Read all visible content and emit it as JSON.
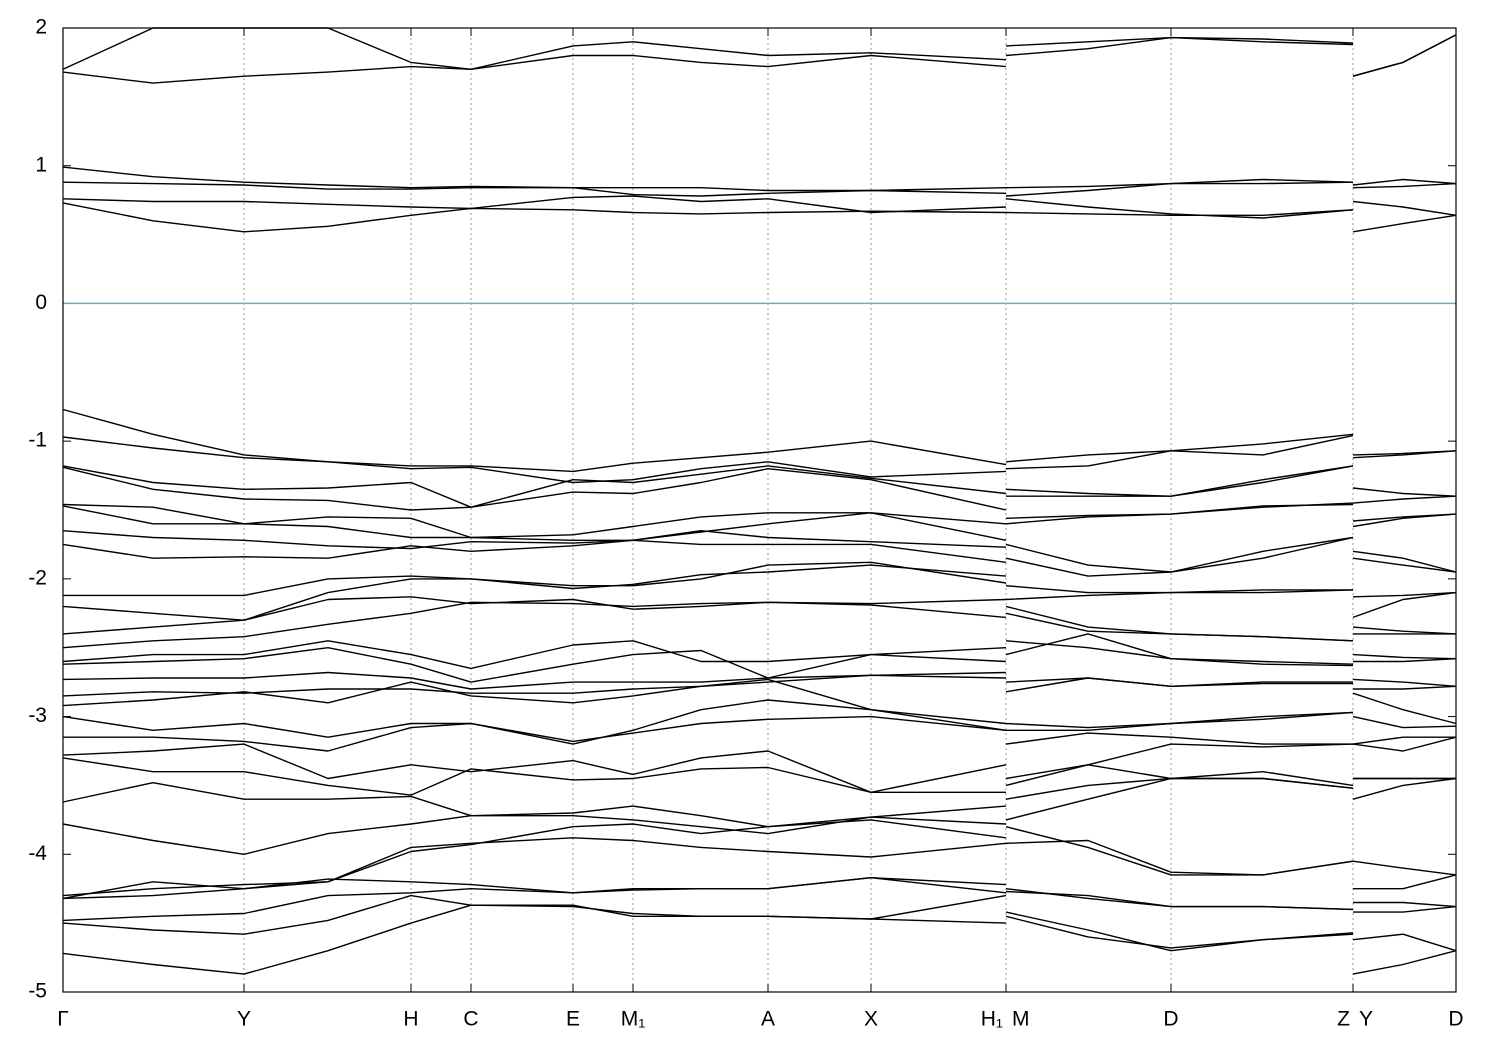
{
  "chart_data": {
    "type": "line",
    "x": [
      0,
      90,
      181,
      265,
      348,
      408,
      510,
      570,
      638,
      705,
      808,
      943,
      943,
      943,
      1025,
      1108,
      1200,
      1290,
      1290,
      1290,
      1340,
      1393
    ],
    "xlim": [
      0,
      1393
    ],
    "kpoints": [
      {
        "value": 0,
        "label": "Γ"
      },
      {
        "value": 181,
        "label": "Y"
      },
      {
        "value": 348,
        "label": "H"
      },
      {
        "value": 408,
        "label": "C"
      },
      {
        "value": 510,
        "label": "E"
      },
      {
        "value": 570,
        "label": "M₁"
      },
      {
        "value": 705,
        "label": "A"
      },
      {
        "value": 808,
        "label": "X"
      },
      {
        "value": 943,
        "label": "H₁"
      },
      {
        "value": 943,
        "label": "M"
      },
      {
        "value": 1108,
        "label": "D"
      },
      {
        "value": 1290,
        "label": "Z"
      },
      {
        "value": 1290,
        "label": "Y"
      },
      {
        "value": 1393,
        "label": "D"
      }
    ],
    "ylim": [
      -5,
      2
    ],
    "yticks": [
      -5,
      -4,
      -3,
      -2,
      -1,
      0,
      1,
      2
    ],
    "color": "#000000",
    "reference_line": {
      "value": 0,
      "color": "#5ab4c8"
    },
    "grid": true,
    "series": [
      {
        "values": [
          1.68,
          1.6,
          1.65,
          1.68,
          1.72,
          1.7,
          1.8,
          1.8,
          1.75,
          1.72,
          1.8,
          1.72,
          null,
          1.8,
          1.85,
          1.93,
          1.9,
          1.88,
          null,
          1.65,
          1.75,
          1.95
        ]
      },
      {
        "values": [
          1.7,
          2.0,
          2.0,
          2.0,
          1.75,
          1.7,
          1.87,
          1.9,
          1.85,
          1.8,
          1.82,
          1.77,
          null,
          1.87,
          1.9,
          1.93,
          1.92,
          1.89,
          null,
          1.65,
          1.75,
          1.95
        ]
      },
      {
        "values": [
          0.99,
          0.92,
          0.88,
          0.86,
          0.84,
          0.85,
          0.84,
          0.84,
          0.84,
          0.82,
          0.82,
          0.84,
          null,
          0.84,
          0.85,
          0.87,
          0.9,
          0.88,
          null,
          0.86,
          0.9,
          0.87
        ]
      },
      {
        "values": [
          0.88,
          0.87,
          0.86,
          0.83,
          0.83,
          0.84,
          0.84,
          0.79,
          0.78,
          0.8,
          0.82,
          0.8,
          null,
          0.78,
          0.82,
          0.87,
          0.87,
          0.88,
          null,
          0.84,
          0.85,
          0.87
        ]
      },
      {
        "values": [
          0.76,
          0.74,
          0.74,
          0.72,
          0.7,
          0.69,
          0.77,
          0.78,
          0.74,
          0.76,
          0.66,
          0.7,
          null,
          0.76,
          0.7,
          0.65,
          0.62,
          0.68,
          null,
          0.74,
          0.7,
          0.64
        ]
      },
      {
        "values": [
          0.73,
          0.6,
          0.52,
          0.56,
          0.64,
          0.69,
          0.68,
          0.66,
          0.65,
          0.66,
          0.67,
          0.66,
          null,
          0.66,
          0.65,
          0.64,
          0.64,
          0.68,
          null,
          0.52,
          0.58,
          0.64
        ]
      },
      {
        "values": [
          -0.77,
          -0.95,
          -1.1,
          -1.15,
          -1.18,
          -1.18,
          -1.22,
          -1.16,
          -1.12,
          -1.08,
          -1.0,
          -1.17,
          null,
          -1.15,
          -1.1,
          -1.07,
          -1.02,
          -0.95,
          null,
          -1.1,
          -1.09,
          -1.07
        ]
      },
      {
        "values": [
          -0.97,
          -1.05,
          -1.12,
          -1.15,
          -1.2,
          -1.19,
          -1.3,
          -1.28,
          -1.2,
          -1.15,
          -1.26,
          -1.22,
          null,
          -1.2,
          -1.18,
          -1.07,
          -1.1,
          -0.96,
          null,
          -1.12,
          -1.1,
          -1.07
        ]
      },
      {
        "values": [
          -1.18,
          -1.3,
          -1.35,
          -1.34,
          -1.3,
          -1.48,
          -1.28,
          -1.3,
          -1.24,
          -1.18,
          -1.27,
          -1.38,
          null,
          -1.35,
          -1.38,
          -1.4,
          -1.3,
          -1.18,
          null,
          -1.34,
          -1.38,
          -1.4
        ]
      },
      {
        "values": [
          -1.19,
          -1.35,
          -1.42,
          -1.43,
          -1.5,
          -1.48,
          -1.37,
          -1.38,
          -1.3,
          -1.2,
          -1.28,
          -1.5,
          null,
          -1.4,
          -1.4,
          -1.4,
          -1.28,
          -1.18,
          null,
          -1.45,
          -1.42,
          -1.4
        ]
      },
      {
        "values": [
          -1.46,
          -1.48,
          -1.6,
          -1.55,
          -1.56,
          -1.7,
          -1.68,
          -1.62,
          -1.55,
          -1.52,
          -1.52,
          -1.6,
          null,
          -1.6,
          -1.55,
          -1.53,
          -1.48,
          -1.45,
          null,
          -1.62,
          -1.56,
          -1.53
        ]
      },
      {
        "values": [
          -1.47,
          -1.6,
          -1.6,
          -1.62,
          -1.7,
          -1.7,
          -1.72,
          -1.72,
          -1.66,
          -1.6,
          -1.52,
          -1.72,
          null,
          -1.56,
          -1.54,
          -1.53,
          -1.47,
          -1.46,
          null,
          -1.58,
          -1.55,
          -1.53
        ]
      },
      {
        "values": [
          -1.65,
          -1.7,
          -1.72,
          -1.76,
          -1.78,
          -1.73,
          -1.74,
          -1.72,
          -1.65,
          -1.7,
          -1.73,
          -1.77,
          null,
          -1.75,
          -1.9,
          -1.95,
          -1.8,
          -1.7,
          null,
          -1.8,
          -1.85,
          -1.95
        ]
      },
      {
        "values": [
          -1.75,
          -1.85,
          -1.84,
          -1.85,
          -1.76,
          -1.8,
          -1.76,
          -1.72,
          -1.75,
          -1.75,
          -1.75,
          -1.88,
          null,
          -1.85,
          -1.98,
          -1.95,
          -1.85,
          -1.7,
          null,
          -1.85,
          -1.9,
          -1.95
        ]
      },
      {
        "values": [
          -2.12,
          -2.12,
          -2.12,
          -2.0,
          -1.98,
          -2.0,
          -2.07,
          -2.04,
          -1.97,
          -1.95,
          -1.9,
          -1.98,
          null,
          -2.05,
          -2.1,
          -2.1,
          -2.1,
          -2.08,
          null,
          -2.13,
          -2.12,
          -2.1
        ]
      },
      {
        "values": [
          -2.2,
          -2.25,
          -2.3,
          -2.1,
          -2.0,
          -2.0,
          -2.05,
          -2.05,
          -2.0,
          -1.9,
          -1.88,
          -2.03,
          null,
          -2.15,
          -2.12,
          -2.1,
          -2.08,
          -2.08,
          null,
          -2.28,
          -2.15,
          -2.1
        ]
      },
      {
        "values": [
          -2.4,
          -2.35,
          -2.3,
          -2.15,
          -2.13,
          -2.18,
          -2.15,
          -2.22,
          -2.2,
          -2.17,
          -2.18,
          -2.15,
          null,
          -2.2,
          -2.35,
          -2.4,
          -2.42,
          -2.45,
          null,
          -2.35,
          -2.38,
          -2.4
        ]
      },
      {
        "values": [
          -2.5,
          -2.45,
          -2.42,
          -2.33,
          -2.25,
          -2.17,
          -2.18,
          -2.2,
          -2.18,
          -2.17,
          -2.19,
          -2.28,
          null,
          -2.25,
          -2.38,
          -2.4,
          -2.42,
          -2.45,
          null,
          -2.4,
          -2.4,
          -2.4
        ]
      },
      {
        "values": [
          -2.6,
          -2.55,
          -2.55,
          -2.45,
          -2.55,
          -2.65,
          -2.48,
          -2.45,
          -2.6,
          -2.6,
          -2.55,
          -2.5,
          null,
          -2.55,
          -2.4,
          -2.58,
          -2.6,
          -2.62,
          null,
          -2.55,
          -2.57,
          -2.58
        ]
      },
      {
        "values": [
          -2.62,
          -2.6,
          -2.58,
          -2.5,
          -2.62,
          -2.75,
          -2.62,
          -2.55,
          -2.52,
          -2.72,
          -2.55,
          -2.6,
          null,
          -2.45,
          -2.5,
          -2.58,
          -2.62,
          -2.63,
          null,
          -2.6,
          -2.6,
          -2.58
        ]
      },
      {
        "values": [
          -2.73,
          -2.72,
          -2.72,
          -2.68,
          -2.72,
          -2.8,
          -2.75,
          -2.75,
          -2.75,
          -2.72,
          -2.7,
          -2.68,
          null,
          -2.75,
          -2.72,
          -2.78,
          -2.75,
          -2.75,
          null,
          -2.73,
          -2.75,
          -2.78
        ]
      },
      {
        "values": [
          -2.85,
          -2.82,
          -2.83,
          -2.8,
          -2.8,
          -2.83,
          -2.83,
          -2.8,
          -2.78,
          -2.75,
          -2.7,
          -2.72,
          null,
          -2.82,
          -2.72,
          -2.78,
          -2.76,
          -2.76,
          null,
          -2.8,
          -2.8,
          -2.78
        ]
      },
      {
        "values": [
          -2.92,
          -2.88,
          -2.82,
          -2.9,
          -2.75,
          -2.85,
          -2.9,
          -2.85,
          -2.78,
          -2.73,
          -2.95,
          -3.05,
          null,
          -3.05,
          -3.08,
          -3.05,
          -3.0,
          -2.97,
          null,
          -2.83,
          -2.95,
          -3.05
        ]
      },
      {
        "values": [
          -3.0,
          -3.1,
          -3.05,
          -3.15,
          -3.05,
          -3.05,
          -3.2,
          -3.1,
          -2.95,
          -2.88,
          -2.95,
          -3.1,
          null,
          -3.1,
          -3.1,
          -3.05,
          -3.02,
          -2.97,
          null,
          -3.0,
          -3.08,
          -3.07
        ]
      },
      {
        "values": [
          -3.15,
          -3.15,
          -3.18,
          -3.25,
          -3.08,
          -3.05,
          -3.18,
          -3.12,
          -3.05,
          -3.02,
          -3.0,
          -3.1,
          null,
          -3.2,
          -3.12,
          -3.15,
          -3.2,
          -3.2,
          null,
          -3.2,
          -3.25,
          -3.15
        ]
      },
      {
        "values": [
          -3.28,
          -3.25,
          -3.2,
          -3.45,
          -3.35,
          -3.4,
          -3.32,
          -3.42,
          -3.3,
          -3.25,
          -3.55,
          -3.35,
          null,
          -3.45,
          -3.35,
          -3.2,
          -3.22,
          -3.2,
          null,
          -3.2,
          -3.15,
          -3.15
        ]
      },
      {
        "values": [
          -3.3,
          -3.4,
          -3.4,
          -3.5,
          -3.57,
          -3.38,
          -3.46,
          -3.45,
          -3.38,
          -3.37,
          -3.55,
          -3.55,
          null,
          -3.5,
          -3.35,
          -3.45,
          -3.4,
          -3.5,
          null,
          -3.45,
          -3.45,
          -3.45
        ]
      },
      {
        "values": [
          -3.62,
          -3.48,
          -3.6,
          -3.6,
          -3.58,
          -3.72,
          -3.7,
          -3.65,
          -3.72,
          -3.8,
          -3.73,
          -3.65,
          null,
          -3.6,
          -3.5,
          -3.45,
          -3.45,
          -3.52,
          null,
          -3.6,
          -3.5,
          -3.45
        ]
      },
      {
        "values": [
          -3.78,
          -3.9,
          -4.0,
          -3.85,
          -3.78,
          -3.72,
          -3.72,
          -3.75,
          -3.8,
          -3.85,
          -3.73,
          -3.78,
          null,
          -3.75,
          -3.6,
          -3.45,
          -3.45,
          -3.52,
          null,
          -3.45,
          -3.45,
          -3.45
        ]
      },
      {
        "values": [
          -4.3,
          -4.25,
          -4.22,
          -4.2,
          -3.95,
          -3.92,
          -3.88,
          -3.9,
          -3.95,
          -3.98,
          -4.02,
          -3.92,
          null,
          -3.8,
          -3.95,
          -4.15,
          -4.15,
          -4.05,
          null,
          -4.05,
          -4.1,
          -4.15
        ]
      },
      {
        "values": [
          -4.32,
          -4.3,
          -4.25,
          -4.2,
          -3.98,
          -3.93,
          -3.8,
          -3.78,
          -3.85,
          -3.8,
          -3.75,
          -3.88,
          null,
          -3.92,
          -3.9,
          -4.13,
          -4.15,
          -4.05,
          null,
          -4.25,
          -4.25,
          -4.15
        ]
      },
      {
        "values": [
          -4.32,
          -4.2,
          -4.25,
          -4.18,
          -4.2,
          -4.22,
          -4.28,
          -4.25,
          -4.25,
          -4.25,
          -4.17,
          -4.22,
          null,
          -4.25,
          -4.32,
          -4.38,
          -4.38,
          -4.4,
          null,
          -4.35,
          -4.35,
          -4.38
        ]
      },
      {
        "values": [
          -4.48,
          -4.45,
          -4.43,
          -4.3,
          -4.28,
          -4.25,
          -4.28,
          -4.26,
          -4.25,
          -4.25,
          -4.17,
          -4.28,
          null,
          -4.27,
          -4.3,
          -4.38,
          -4.38,
          -4.4,
          null,
          -4.42,
          -4.42,
          -4.38
        ]
      },
      {
        "values": [
          -4.5,
          -4.55,
          -4.58,
          -4.48,
          -4.3,
          -4.37,
          -4.37,
          -4.45,
          -4.45,
          -4.45,
          -4.47,
          -4.3,
          null,
          -4.42,
          -4.55,
          -4.7,
          -4.62,
          -4.57,
          null,
          -4.62,
          -4.58,
          -4.7
        ]
      },
      {
        "values": [
          -4.72,
          -4.8,
          -4.87,
          -4.7,
          -4.5,
          -4.37,
          -4.38,
          -4.43,
          -4.45,
          -4.45,
          -4.47,
          -4.5,
          null,
          -4.45,
          -4.6,
          -4.68,
          -4.62,
          -4.58,
          null,
          -4.87,
          -4.8,
          -4.7
        ]
      }
    ]
  }
}
